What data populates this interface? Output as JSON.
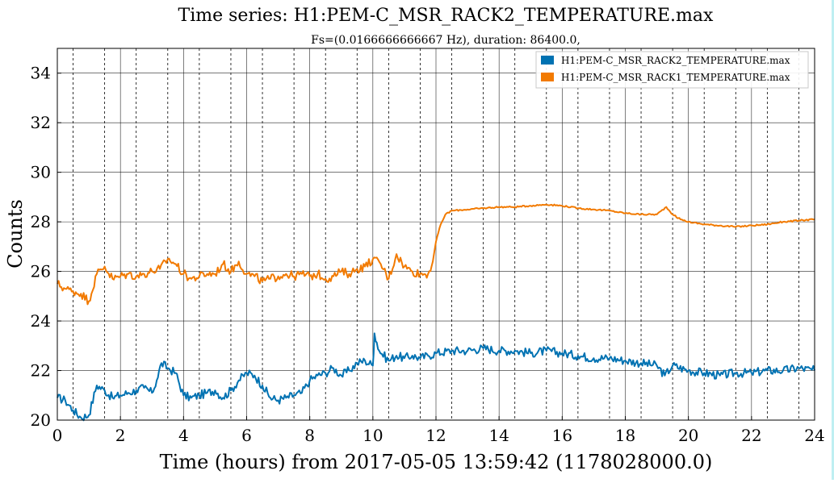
{
  "chart_data": {
    "type": "line",
    "title": "Time series: H1:PEM-C_MSR_RACK2_TEMPERATURE.max",
    "subtitle": "Fs=(0.0166666666667 Hz), duration: 86400.0,",
    "xlabel": "Time (hours) from 2017-05-05 13:59:42 (1178028000.0)",
    "ylabel": "Counts",
    "xlim": [
      0,
      24
    ],
    "ylim": [
      20,
      35
    ],
    "x_ticks": [
      0,
      2,
      4,
      6,
      8,
      10,
      12,
      14,
      16,
      18,
      20,
      22,
      24
    ],
    "y_ticks": [
      20,
      22,
      24,
      26,
      28,
      30,
      32,
      34
    ],
    "grid": true,
    "minor_grid": "dashed, every 0.5 hours",
    "legend_position": "top-right",
    "series": [
      {
        "name": "H1:PEM-C_MSR_RACK2_TEMPERATURE.max",
        "color": "#0072b2",
        "x": [
          0,
          0.25,
          0.5,
          0.75,
          1.0,
          1.25,
          1.5,
          1.75,
          2.0,
          2.25,
          2.5,
          2.75,
          3.0,
          3.15,
          3.3,
          3.5,
          3.75,
          4.0,
          4.25,
          4.5,
          4.75,
          5.0,
          5.25,
          5.5,
          5.75,
          6.0,
          6.25,
          6.5,
          6.75,
          7.0,
          7.25,
          7.5,
          7.75,
          8.0,
          8.25,
          8.5,
          8.75,
          9.0,
          9.25,
          9.5,
          9.75,
          10.0,
          10.05,
          10.2,
          10.5,
          10.75,
          11.0,
          11.25,
          11.5,
          11.75,
          12.0,
          12.5,
          13.0,
          13.5,
          14.0,
          14.5,
          15.0,
          15.5,
          16.0,
          16.5,
          17.0,
          17.5,
          18.0,
          18.5,
          19.0,
          19.25,
          19.5,
          20.0,
          20.5,
          21.0,
          21.5,
          22.0,
          22.5,
          23.0,
          23.5,
          24.0
        ],
        "y": [
          20.9,
          20.8,
          20.4,
          20.1,
          20.2,
          21.4,
          21.2,
          20.9,
          21.0,
          21.1,
          21.2,
          21.3,
          21.1,
          21.6,
          22.3,
          22.1,
          21.9,
          21.0,
          20.9,
          21.0,
          21.1,
          21.2,
          20.9,
          21.2,
          21.6,
          21.9,
          21.8,
          21.4,
          20.9,
          20.8,
          20.9,
          21.0,
          21.1,
          21.6,
          21.8,
          21.9,
          22.1,
          21.8,
          22.0,
          22.3,
          22.4,
          22.2,
          23.5,
          22.8,
          22.4,
          22.6,
          22.5,
          22.6,
          22.5,
          22.6,
          22.7,
          22.8,
          22.8,
          22.9,
          22.8,
          22.8,
          22.7,
          22.8,
          22.7,
          22.6,
          22.5,
          22.5,
          22.4,
          22.3,
          22.2,
          21.8,
          22.2,
          22.0,
          21.9,
          21.8,
          21.9,
          21.9,
          22.0,
          22.0,
          22.1,
          22.0
        ]
      },
      {
        "name": "H1:PEM-C_MSR_RACK1_TEMPERATURE.max",
        "color": "#f27a00",
        "x": [
          0,
          0.25,
          0.5,
          0.75,
          1.0,
          1.25,
          1.5,
          1.75,
          2.0,
          2.25,
          2.5,
          2.75,
          3.0,
          3.25,
          3.5,
          3.75,
          4.0,
          4.25,
          4.5,
          4.75,
          5.0,
          5.25,
          5.5,
          5.75,
          6.0,
          6.25,
          6.5,
          6.75,
          7.0,
          7.25,
          7.5,
          7.75,
          8.0,
          8.25,
          8.5,
          8.75,
          9.0,
          9.25,
          9.5,
          9.75,
          10.0,
          10.25,
          10.5,
          10.75,
          11.0,
          11.25,
          11.5,
          11.75,
          11.9,
          12.0,
          12.15,
          12.3,
          12.5,
          13.0,
          13.5,
          14.0,
          14.5,
          15.0,
          15.5,
          16.0,
          16.5,
          17.0,
          17.5,
          18.0,
          18.5,
          19.0,
          19.3,
          19.5,
          19.75,
          20.0,
          20.5,
          21.0,
          21.5,
          22.0,
          22.5,
          23.0,
          23.5,
          24.0
        ],
        "y": [
          25.5,
          25.3,
          25.2,
          25.1,
          24.8,
          25.9,
          26.2,
          25.7,
          25.8,
          25.9,
          25.8,
          25.9,
          26.0,
          26.1,
          26.5,
          26.3,
          25.9,
          25.7,
          25.8,
          25.9,
          25.9,
          26.3,
          26.0,
          26.4,
          25.9,
          25.8,
          25.6,
          25.7,
          25.8,
          25.9,
          25.8,
          25.9,
          25.8,
          25.9,
          25.7,
          25.8,
          26.0,
          25.9,
          26.1,
          26.2,
          26.5,
          26.3,
          25.7,
          26.7,
          26.2,
          26.0,
          25.9,
          25.9,
          26.4,
          27.2,
          27.9,
          28.3,
          28.45,
          28.5,
          28.55,
          28.6,
          28.6,
          28.65,
          28.7,
          28.65,
          28.55,
          28.5,
          28.45,
          28.35,
          28.3,
          28.3,
          28.6,
          28.3,
          28.1,
          28.0,
          27.9,
          27.85,
          27.8,
          27.85,
          27.9,
          28.0,
          28.05,
          28.1
        ]
      }
    ]
  }
}
